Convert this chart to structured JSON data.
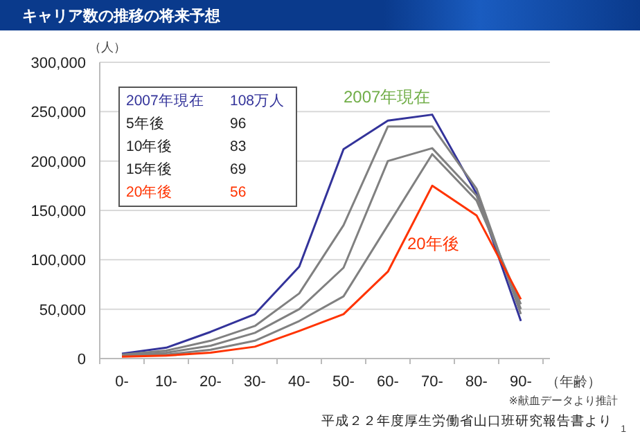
{
  "chart_data": {
    "type": "line",
    "title": "キャリア数の推移の将来予想",
    "ylabel": "（人）",
    "xlabel": "（年齢）",
    "categories": [
      "0-",
      "10-",
      "20-",
      "30-",
      "40-",
      "50-",
      "60-",
      "70-",
      "80-",
      "90-"
    ],
    "series": [
      {
        "color": "#33339a",
        "values": [
          5000,
          11000,
          27000,
          45000,
          93000,
          212000,
          241000,
          247000,
          167000,
          38000
        ]
      },
      {
        "color": "#808080",
        "values": [
          4000,
          8000,
          18000,
          33000,
          66000,
          135000,
          235000,
          235000,
          172000,
          45000
        ]
      },
      {
        "color": "#808080",
        "values": [
          3000,
          6000,
          13000,
          26000,
          50000,
          92000,
          200000,
          213000,
          165000,
          50000
        ]
      },
      {
        "color": "#808080",
        "values": [
          3000,
          4000,
          9000,
          18000,
          38000,
          63000,
          135000,
          207000,
          160000,
          55000
        ]
      },
      {
        "color": "#ff3300",
        "values": [
          2000,
          3000,
          6000,
          12000,
          28000,
          45000,
          88000,
          175000,
          145000,
          60000
        ]
      }
    ],
    "ylim": [
      0,
      300000
    ],
    "yticks": [
      {
        "value": 0,
        "label": "0"
      },
      {
        "value": 50000,
        "label": "50,000"
      },
      {
        "value": 100000,
        "label": "100,000"
      },
      {
        "value": 150000,
        "label": "150,000"
      },
      {
        "value": 200000,
        "label": "200,000"
      },
      {
        "value": 250000,
        "label": "250,000"
      },
      {
        "value": 300000,
        "label": "300,000"
      }
    ],
    "grid": "y",
    "marker": "none",
    "line_style": "solid",
    "annotations": [
      "2007年現在",
      "108万人",
      "5年後",
      "96",
      "10年後",
      "83",
      "15年後",
      "69",
      "20年後",
      "56",
      "2007年現在",
      "20年後",
      "※献血データより推計",
      "平成２２年度厚生労働省山口班研究報告書より",
      "1"
    ]
  }
}
